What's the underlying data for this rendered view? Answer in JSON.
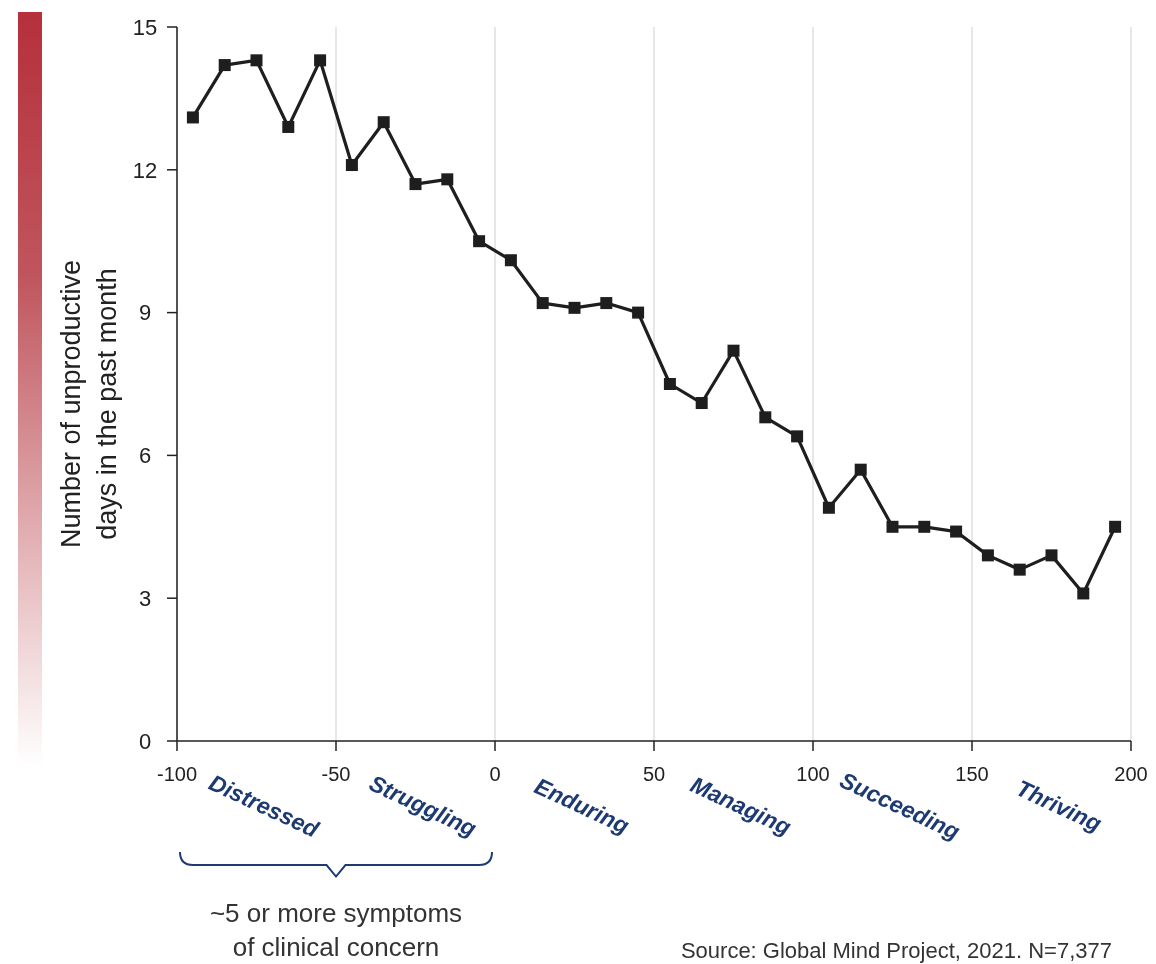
{
  "chart_data": {
    "type": "line",
    "ylabel": "Number of unproductive\ndays in the past month",
    "x": [
      -95,
      -85,
      -75,
      -65,
      -55,
      -45,
      -35,
      -25,
      -15,
      -5,
      5,
      15,
      25,
      35,
      45,
      55,
      65,
      75,
      85,
      95,
      105,
      115,
      125,
      135,
      145,
      155,
      165,
      175,
      185,
      195
    ],
    "series": [
      {
        "color": "#1e1e1e",
        "values": [
          13.1,
          14.2,
          14.3,
          12.9,
          14.3,
          12.1,
          13.0,
          11.7,
          11.8,
          10.5,
          10.1,
          9.2,
          9.1,
          9.2,
          9.0,
          7.5,
          7.1,
          8.2,
          6.8,
          6.4,
          4.9,
          5.7,
          4.5,
          4.5,
          4.4,
          3.9,
          3.6,
          3.9,
          3.1,
          4.5
        ]
      }
    ],
    "xlim": [
      -100,
      200
    ],
    "xticks": [
      -100,
      -50,
      0,
      50,
      100,
      150,
      200
    ],
    "ylim": [
      0,
      15
    ],
    "yticks": [
      0,
      3,
      6,
      9,
      12,
      15
    ],
    "grid": "x",
    "marker": "square",
    "line_style": "solid",
    "annotations": [
      "Distressed",
      "Struggling",
      "Enduring",
      "Managing",
      "Succeeding",
      "Thriving",
      "~5 or more symptoms\nof clinical concern",
      "Source: Global Mind Project, 2021. N=7,377"
    ]
  }
}
